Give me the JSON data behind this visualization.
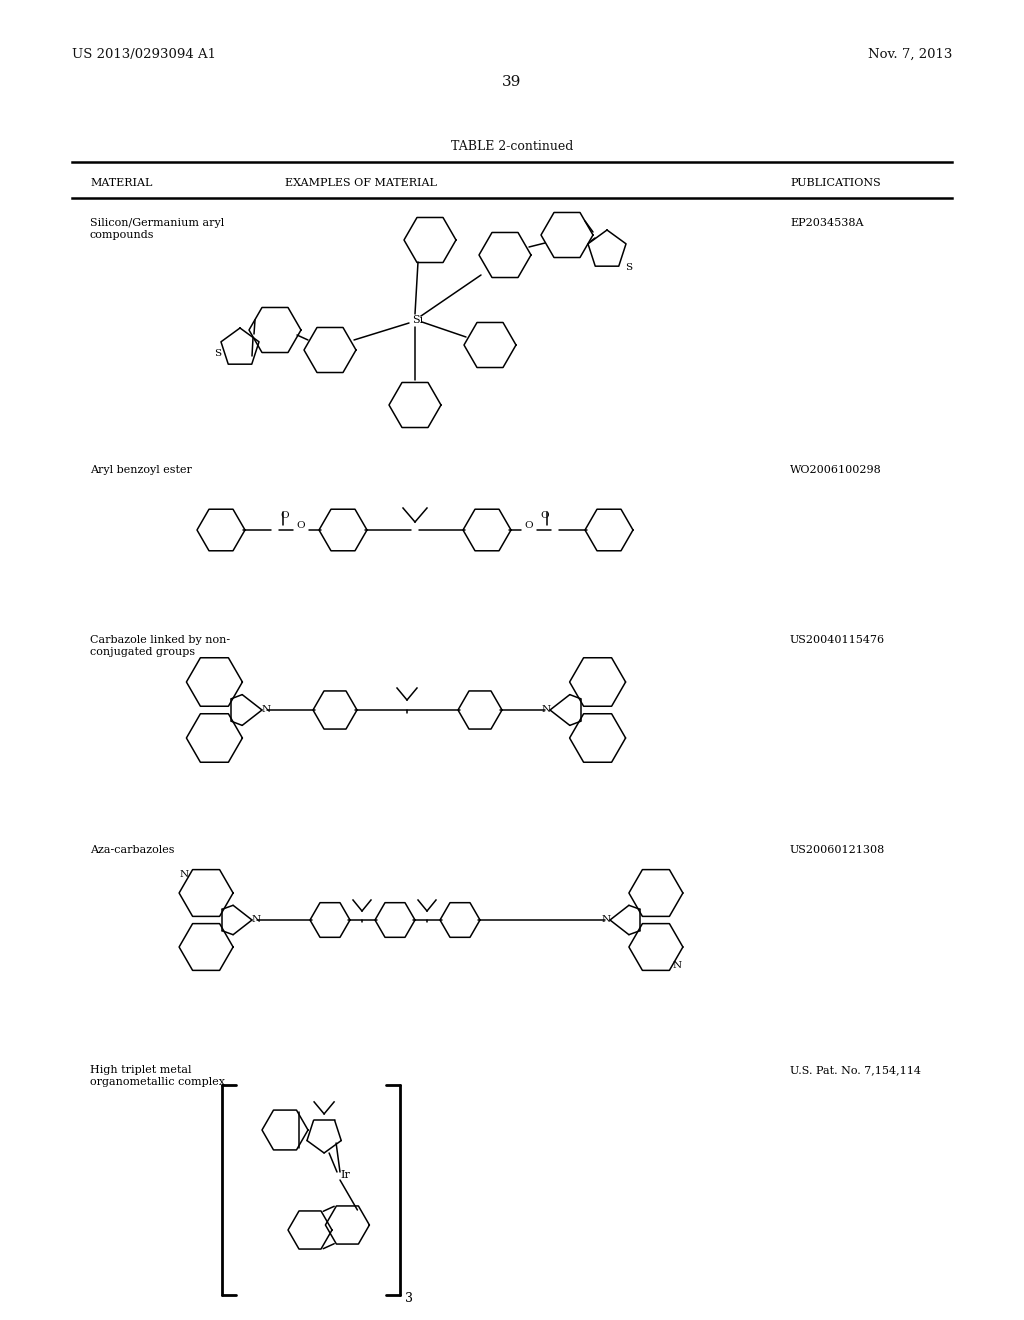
{
  "bg_color": "#ffffff",
  "header_left": "US 2013/0293094 A1",
  "header_right": "Nov. 7, 2013",
  "page_number": "39",
  "table_title": "TABLE 2-continued",
  "col1_header": "MATERIAL",
  "col2_header": "EXAMPLES OF MATERIAL",
  "col3_header": "PUBLICATIONS",
  "rows": [
    {
      "material": "Silicon/Germanium aryl\ncompounds",
      "publication": "EP2034538A"
    },
    {
      "material": "Aryl benzoyl ester",
      "publication": "WO2006100298"
    },
    {
      "material": "Carbazole linked by non-\nconjugated groups",
      "publication": "US20040115476"
    },
    {
      "material": "Aza-carbazoles",
      "publication": "US20060121308"
    },
    {
      "material": "High triplet metal\norganometallic complex",
      "publication": "U.S. Pat. No. 7,154,114"
    }
  ],
  "lw": 1.1
}
